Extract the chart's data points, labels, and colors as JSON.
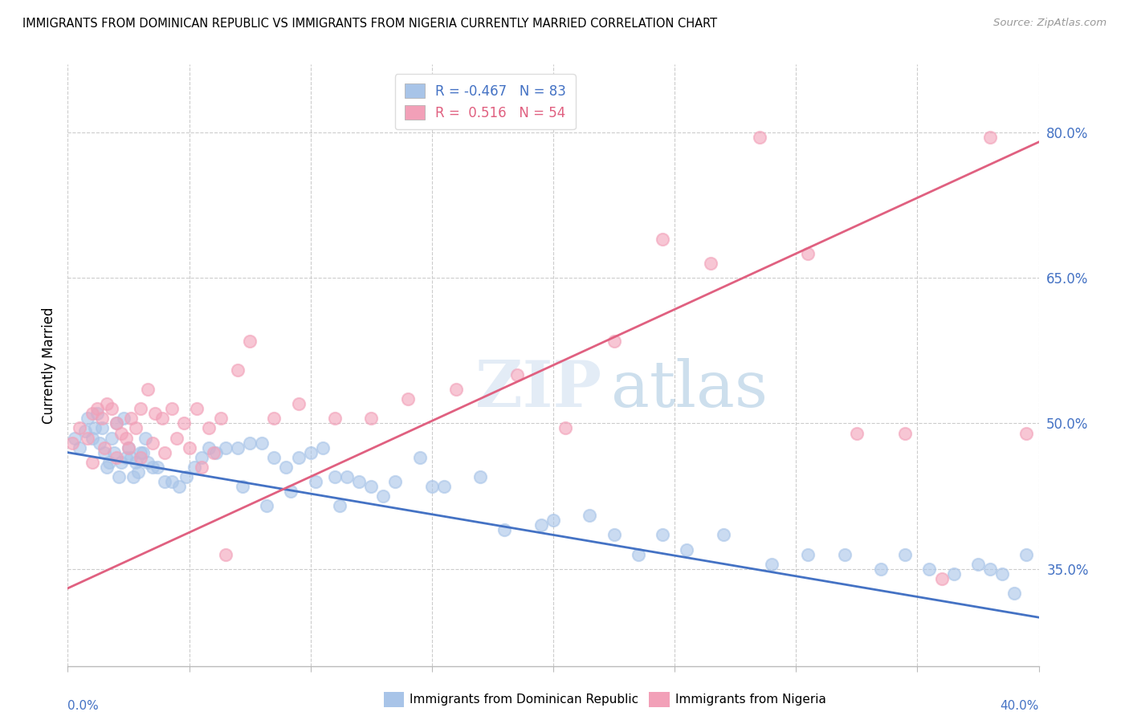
{
  "title": "IMMIGRANTS FROM DOMINICAN REPUBLIC VS IMMIGRANTS FROM NIGERIA CURRENTLY MARRIED CORRELATION CHART",
  "source": "Source: ZipAtlas.com",
  "ylabel": "Currently Married",
  "right_yticks": [
    35.0,
    50.0,
    65.0,
    80.0
  ],
  "watermark_zip": "ZIP",
  "watermark_atlas": "atlas",
  "legend_blue_label": "Immigrants from Dominican Republic",
  "legend_pink_label": "Immigrants from Nigeria",
  "R_blue": -0.467,
  "N_blue": 83,
  "R_pink": 0.516,
  "N_pink": 54,
  "blue_color": "#a8c4e8",
  "pink_color": "#f2a0b8",
  "blue_line_color": "#4472c4",
  "pink_line_color": "#e06080",
  "blue_trend_x0": 0.0,
  "blue_trend_y0": 47.0,
  "blue_trend_x1": 40.0,
  "blue_trend_y1": 30.0,
  "pink_trend_x0": 0.0,
  "pink_trend_y0": 33.0,
  "pink_trend_x1": 40.0,
  "pink_trend_y1": 79.0,
  "x_blue": [
    0.3,
    0.5,
    0.7,
    0.8,
    1.0,
    1.1,
    1.2,
    1.3,
    1.4,
    1.5,
    1.6,
    1.7,
    1.8,
    1.9,
    2.0,
    2.1,
    2.2,
    2.3,
    2.4,
    2.5,
    2.6,
    2.7,
    2.8,
    2.9,
    3.0,
    3.1,
    3.2,
    3.3,
    3.5,
    3.7,
    4.0,
    4.3,
    4.6,
    4.9,
    5.2,
    5.5,
    5.8,
    6.1,
    6.5,
    7.0,
    7.5,
    8.0,
    8.5,
    9.0,
    9.5,
    10.0,
    10.5,
    11.0,
    11.5,
    12.0,
    12.5,
    13.0,
    13.5,
    14.5,
    15.0,
    15.5,
    17.0,
    18.0,
    19.5,
    20.0,
    21.5,
    22.5,
    23.5,
    24.5,
    25.5,
    27.0,
    29.0,
    30.5,
    32.0,
    33.5,
    34.5,
    35.5,
    36.5,
    37.5,
    38.0,
    38.5,
    39.0,
    39.5,
    7.2,
    8.2,
    9.2,
    10.2,
    11.2
  ],
  "y_blue": [
    48.5,
    47.5,
    49.2,
    50.5,
    48.5,
    49.5,
    51.0,
    48.0,
    49.5,
    47.0,
    45.5,
    46.0,
    48.5,
    47.0,
    50.0,
    44.5,
    46.0,
    50.5,
    46.5,
    47.5,
    46.5,
    44.5,
    46.0,
    45.0,
    47.0,
    47.0,
    48.5,
    46.0,
    45.5,
    45.5,
    44.0,
    44.0,
    43.5,
    44.5,
    45.5,
    46.5,
    47.5,
    47.0,
    47.5,
    47.5,
    48.0,
    48.0,
    46.5,
    45.5,
    46.5,
    47.0,
    47.5,
    44.5,
    44.5,
    44.0,
    43.5,
    42.5,
    44.0,
    46.5,
    43.5,
    43.5,
    44.5,
    39.0,
    39.5,
    40.0,
    40.5,
    38.5,
    36.5,
    38.5,
    37.0,
    38.5,
    35.5,
    36.5,
    36.5,
    35.0,
    36.5,
    35.0,
    34.5,
    35.5,
    35.0,
    34.5,
    32.5,
    36.5,
    43.5,
    41.5,
    43.0,
    44.0,
    41.5
  ],
  "x_pink": [
    0.2,
    0.5,
    0.8,
    1.0,
    1.2,
    1.4,
    1.6,
    1.8,
    2.0,
    2.2,
    2.4,
    2.6,
    2.8,
    3.0,
    3.3,
    3.6,
    3.9,
    4.3,
    4.8,
    5.3,
    5.8,
    6.3,
    7.0,
    7.5,
    8.5,
    9.5,
    11.0,
    12.5,
    14.0,
    16.0,
    18.5,
    20.5,
    22.5,
    24.5,
    26.5,
    28.5,
    30.5,
    32.5,
    34.5,
    36.0,
    38.0,
    39.5,
    1.5,
    2.5,
    3.5,
    4.5,
    5.5,
    6.5,
    2.0,
    1.0,
    3.0,
    4.0,
    5.0,
    6.0
  ],
  "y_pink": [
    48.0,
    49.5,
    48.5,
    51.0,
    51.5,
    50.5,
    52.0,
    51.5,
    50.0,
    49.0,
    48.5,
    50.5,
    49.5,
    51.5,
    53.5,
    51.0,
    50.5,
    51.5,
    50.0,
    51.5,
    49.5,
    50.5,
    55.5,
    58.5,
    50.5,
    52.0,
    50.5,
    50.5,
    52.5,
    53.5,
    55.0,
    49.5,
    58.5,
    69.0,
    66.5,
    79.5,
    67.5,
    49.0,
    49.0,
    34.0,
    79.5,
    49.0,
    47.5,
    47.5,
    48.0,
    48.5,
    45.5,
    36.5,
    46.5,
    46.0,
    46.5,
    47.0,
    47.5,
    47.0
  ],
  "xmin": 0.0,
  "xmax": 40.0,
  "ymin": 25.0,
  "ymax": 87.0
}
